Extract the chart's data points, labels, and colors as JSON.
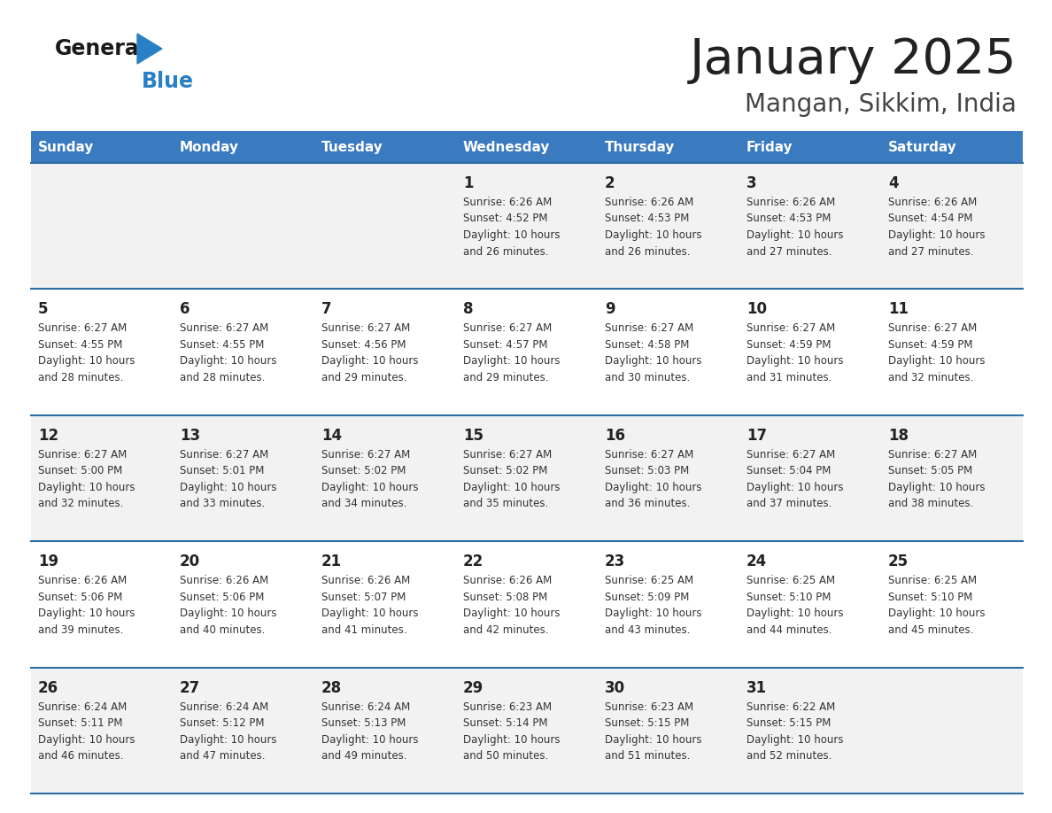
{
  "title": "January 2025",
  "subtitle": "Mangan, Sikkim, India",
  "header_bg_color": "#3a7abf",
  "header_text_color": "#ffffff",
  "days_of_week": [
    "Sunday",
    "Monday",
    "Tuesday",
    "Wednesday",
    "Thursday",
    "Friday",
    "Saturday"
  ],
  "row_bg_even": "#f2f2f2",
  "row_bg_odd": "#ffffff",
  "cell_border_color": "#2e6da4",
  "title_color": "#222222",
  "subtitle_color": "#444444",
  "day_num_color": "#222222",
  "cell_text_color": "#333333",
  "logo_general_color": "#1a1a1a",
  "logo_blue_color": "#2980c4",
  "logo_triangle_color": "#2980c4",
  "calendar": [
    [
      {
        "day": null,
        "sunrise": null,
        "sunset": null,
        "daylight": null
      },
      {
        "day": null,
        "sunrise": null,
        "sunset": null,
        "daylight": null
      },
      {
        "day": null,
        "sunrise": null,
        "sunset": null,
        "daylight": null
      },
      {
        "day": 1,
        "sunrise": "6:26 AM",
        "sunset": "4:52 PM",
        "daylight": "10 hours and 26 minutes."
      },
      {
        "day": 2,
        "sunrise": "6:26 AM",
        "sunset": "4:53 PM",
        "daylight": "10 hours and 26 minutes."
      },
      {
        "day": 3,
        "sunrise": "6:26 AM",
        "sunset": "4:53 PM",
        "daylight": "10 hours and 27 minutes."
      },
      {
        "day": 4,
        "sunrise": "6:26 AM",
        "sunset": "4:54 PM",
        "daylight": "10 hours and 27 minutes."
      }
    ],
    [
      {
        "day": 5,
        "sunrise": "6:27 AM",
        "sunset": "4:55 PM",
        "daylight": "10 hours and 28 minutes."
      },
      {
        "day": 6,
        "sunrise": "6:27 AM",
        "sunset": "4:55 PM",
        "daylight": "10 hours and 28 minutes."
      },
      {
        "day": 7,
        "sunrise": "6:27 AM",
        "sunset": "4:56 PM",
        "daylight": "10 hours and 29 minutes."
      },
      {
        "day": 8,
        "sunrise": "6:27 AM",
        "sunset": "4:57 PM",
        "daylight": "10 hours and 29 minutes."
      },
      {
        "day": 9,
        "sunrise": "6:27 AM",
        "sunset": "4:58 PM",
        "daylight": "10 hours and 30 minutes."
      },
      {
        "day": 10,
        "sunrise": "6:27 AM",
        "sunset": "4:59 PM",
        "daylight": "10 hours and 31 minutes."
      },
      {
        "day": 11,
        "sunrise": "6:27 AM",
        "sunset": "4:59 PM",
        "daylight": "10 hours and 32 minutes."
      }
    ],
    [
      {
        "day": 12,
        "sunrise": "6:27 AM",
        "sunset": "5:00 PM",
        "daylight": "10 hours and 32 minutes."
      },
      {
        "day": 13,
        "sunrise": "6:27 AM",
        "sunset": "5:01 PM",
        "daylight": "10 hours and 33 minutes."
      },
      {
        "day": 14,
        "sunrise": "6:27 AM",
        "sunset": "5:02 PM",
        "daylight": "10 hours and 34 minutes."
      },
      {
        "day": 15,
        "sunrise": "6:27 AM",
        "sunset": "5:02 PM",
        "daylight": "10 hours and 35 minutes."
      },
      {
        "day": 16,
        "sunrise": "6:27 AM",
        "sunset": "5:03 PM",
        "daylight": "10 hours and 36 minutes."
      },
      {
        "day": 17,
        "sunrise": "6:27 AM",
        "sunset": "5:04 PM",
        "daylight": "10 hours and 37 minutes."
      },
      {
        "day": 18,
        "sunrise": "6:27 AM",
        "sunset": "5:05 PM",
        "daylight": "10 hours and 38 minutes."
      }
    ],
    [
      {
        "day": 19,
        "sunrise": "6:26 AM",
        "sunset": "5:06 PM",
        "daylight": "10 hours and 39 minutes."
      },
      {
        "day": 20,
        "sunrise": "6:26 AM",
        "sunset": "5:06 PM",
        "daylight": "10 hours and 40 minutes."
      },
      {
        "day": 21,
        "sunrise": "6:26 AM",
        "sunset": "5:07 PM",
        "daylight": "10 hours and 41 minutes."
      },
      {
        "day": 22,
        "sunrise": "6:26 AM",
        "sunset": "5:08 PM",
        "daylight": "10 hours and 42 minutes."
      },
      {
        "day": 23,
        "sunrise": "6:25 AM",
        "sunset": "5:09 PM",
        "daylight": "10 hours and 43 minutes."
      },
      {
        "day": 24,
        "sunrise": "6:25 AM",
        "sunset": "5:10 PM",
        "daylight": "10 hours and 44 minutes."
      },
      {
        "day": 25,
        "sunrise": "6:25 AM",
        "sunset": "5:10 PM",
        "daylight": "10 hours and 45 minutes."
      }
    ],
    [
      {
        "day": 26,
        "sunrise": "6:24 AM",
        "sunset": "5:11 PM",
        "daylight": "10 hours and 46 minutes."
      },
      {
        "day": 27,
        "sunrise": "6:24 AM",
        "sunset": "5:12 PM",
        "daylight": "10 hours and 47 minutes."
      },
      {
        "day": 28,
        "sunrise": "6:24 AM",
        "sunset": "5:13 PM",
        "daylight": "10 hours and 49 minutes."
      },
      {
        "day": 29,
        "sunrise": "6:23 AM",
        "sunset": "5:14 PM",
        "daylight": "10 hours and 50 minutes."
      },
      {
        "day": 30,
        "sunrise": "6:23 AM",
        "sunset": "5:15 PM",
        "daylight": "10 hours and 51 minutes."
      },
      {
        "day": 31,
        "sunrise": "6:22 AM",
        "sunset": "5:15 PM",
        "daylight": "10 hours and 52 minutes."
      },
      {
        "day": null,
        "sunrise": null,
        "sunset": null,
        "daylight": null
      }
    ]
  ]
}
